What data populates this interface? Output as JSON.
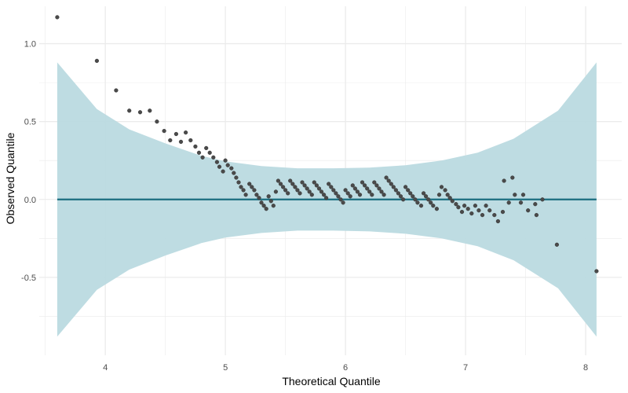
{
  "chart_data": {
    "type": "scatter",
    "title": "",
    "xlabel": "Theoretical Quantile",
    "ylabel": "Observed Quantile",
    "xlim": [
      3.45,
      8.3
    ],
    "ylim": [
      -1.0,
      1.24
    ],
    "x_ticks": [
      4,
      5,
      6,
      7,
      8
    ],
    "x_tick_labels": [
      "4",
      "5",
      "6",
      "7",
      "8"
    ],
    "y_ticks": [
      -0.5,
      0.0,
      0.5,
      1.0
    ],
    "y_tick_labels": [
      "-0.5",
      "0.0",
      "0.5",
      "1.0"
    ],
    "grid": true,
    "colors": {
      "points": "#4a4a4a",
      "reference_line": "#1b6e80",
      "band": "#b8d9df",
      "grid": "#ebebeb"
    },
    "reference_line": {
      "x": [
        3.6,
        8.09
      ],
      "y": [
        0.0,
        0.0
      ]
    },
    "confidence_band": {
      "x": [
        3.6,
        3.93,
        4.2,
        4.5,
        4.8,
        5.0,
        5.3,
        5.6,
        5.9,
        6.2,
        6.5,
        6.8,
        7.1,
        7.4,
        7.77,
        8.09
      ],
      "upper": [
        0.88,
        0.58,
        0.45,
        0.36,
        0.28,
        0.245,
        0.215,
        0.2,
        0.2,
        0.205,
        0.22,
        0.25,
        0.3,
        0.39,
        0.57,
        0.88
      ],
      "lower": [
        -0.88,
        -0.58,
        -0.45,
        -0.36,
        -0.28,
        -0.245,
        -0.215,
        -0.2,
        -0.2,
        -0.205,
        -0.22,
        -0.25,
        -0.3,
        -0.39,
        -0.57,
        -0.88
      ]
    },
    "points": [
      {
        "x": 3.6,
        "y": 1.17
      },
      {
        "x": 3.93,
        "y": 0.89
      },
      {
        "x": 4.09,
        "y": 0.7
      },
      {
        "x": 4.2,
        "y": 0.57
      },
      {
        "x": 4.29,
        "y": 0.56
      },
      {
        "x": 4.37,
        "y": 0.57
      },
      {
        "x": 4.43,
        "y": 0.5
      },
      {
        "x": 4.49,
        "y": 0.44
      },
      {
        "x": 4.54,
        "y": 0.38
      },
      {
        "x": 4.59,
        "y": 0.42
      },
      {
        "x": 4.63,
        "y": 0.37
      },
      {
        "x": 4.67,
        "y": 0.43
      },
      {
        "x": 4.71,
        "y": 0.38
      },
      {
        "x": 4.75,
        "y": 0.34
      },
      {
        "x": 4.78,
        "y": 0.3
      },
      {
        "x": 4.81,
        "y": 0.27
      },
      {
        "x": 4.84,
        "y": 0.33
      },
      {
        "x": 4.87,
        "y": 0.3
      },
      {
        "x": 4.9,
        "y": 0.27
      },
      {
        "x": 4.93,
        "y": 0.24
      },
      {
        "x": 4.95,
        "y": 0.21
      },
      {
        "x": 4.98,
        "y": 0.18
      },
      {
        "x": 5.0,
        "y": 0.25
      },
      {
        "x": 5.02,
        "y": 0.22
      },
      {
        "x": 5.05,
        "y": 0.2
      },
      {
        "x": 5.07,
        "y": 0.17
      },
      {
        "x": 5.09,
        "y": 0.14
      },
      {
        "x": 5.11,
        "y": 0.11
      },
      {
        "x": 5.13,
        "y": 0.08
      },
      {
        "x": 5.15,
        "y": 0.06
      },
      {
        "x": 5.17,
        "y": 0.03
      },
      {
        "x": 5.2,
        "y": 0.1
      },
      {
        "x": 5.22,
        "y": 0.08
      },
      {
        "x": 5.24,
        "y": 0.06
      },
      {
        "x": 5.26,
        "y": 0.03
      },
      {
        "x": 5.28,
        "y": 0.01
      },
      {
        "x": 5.3,
        "y": -0.02
      },
      {
        "x": 5.32,
        "y": -0.04
      },
      {
        "x": 5.34,
        "y": -0.06
      },
      {
        "x": 5.36,
        "y": 0.02
      },
      {
        "x": 5.38,
        "y": -0.01
      },
      {
        "x": 5.4,
        "y": -0.04
      },
      {
        "x": 5.42,
        "y": 0.05
      },
      {
        "x": 5.44,
        "y": 0.12
      },
      {
        "x": 5.46,
        "y": 0.1
      },
      {
        "x": 5.48,
        "y": 0.08
      },
      {
        "x": 5.5,
        "y": 0.06
      },
      {
        "x": 5.52,
        "y": 0.04
      },
      {
        "x": 5.54,
        "y": 0.12
      },
      {
        "x": 5.56,
        "y": 0.1
      },
      {
        "x": 5.58,
        "y": 0.08
      },
      {
        "x": 5.6,
        "y": 0.06
      },
      {
        "x": 5.62,
        "y": 0.04
      },
      {
        "x": 5.64,
        "y": 0.11
      },
      {
        "x": 5.66,
        "y": 0.09
      },
      {
        "x": 5.68,
        "y": 0.07
      },
      {
        "x": 5.7,
        "y": 0.05
      },
      {
        "x": 5.72,
        "y": 0.03
      },
      {
        "x": 5.74,
        "y": 0.11
      },
      {
        "x": 5.76,
        "y": 0.09
      },
      {
        "x": 5.78,
        "y": 0.07
      },
      {
        "x": 5.8,
        "y": 0.05
      },
      {
        "x": 5.82,
        "y": 0.03
      },
      {
        "x": 5.84,
        "y": 0.01
      },
      {
        "x": 5.86,
        "y": 0.1
      },
      {
        "x": 5.88,
        "y": 0.08
      },
      {
        "x": 5.9,
        "y": 0.06
      },
      {
        "x": 5.92,
        "y": 0.04
      },
      {
        "x": 5.94,
        "y": 0.02
      },
      {
        "x": 5.96,
        "y": 0.0
      },
      {
        "x": 5.98,
        "y": -0.02
      },
      {
        "x": 6.0,
        "y": 0.06
      },
      {
        "x": 6.02,
        "y": 0.04
      },
      {
        "x": 6.04,
        "y": 0.02
      },
      {
        "x": 6.06,
        "y": 0.09
      },
      {
        "x": 6.08,
        "y": 0.07
      },
      {
        "x": 6.1,
        "y": 0.05
      },
      {
        "x": 6.12,
        "y": 0.03
      },
      {
        "x": 6.14,
        "y": 0.11
      },
      {
        "x": 6.16,
        "y": 0.09
      },
      {
        "x": 6.18,
        "y": 0.07
      },
      {
        "x": 6.2,
        "y": 0.05
      },
      {
        "x": 6.22,
        "y": 0.03
      },
      {
        "x": 6.24,
        "y": 0.11
      },
      {
        "x": 6.26,
        "y": 0.09
      },
      {
        "x": 6.28,
        "y": 0.07
      },
      {
        "x": 6.3,
        "y": 0.05
      },
      {
        "x": 6.32,
        "y": 0.03
      },
      {
        "x": 6.34,
        "y": 0.14
      },
      {
        "x": 6.36,
        "y": 0.12
      },
      {
        "x": 6.38,
        "y": 0.1
      },
      {
        "x": 6.4,
        "y": 0.08
      },
      {
        "x": 6.42,
        "y": 0.06
      },
      {
        "x": 6.44,
        "y": 0.04
      },
      {
        "x": 6.46,
        "y": 0.02
      },
      {
        "x": 6.48,
        "y": 0.0
      },
      {
        "x": 6.5,
        "y": 0.08
      },
      {
        "x": 6.52,
        "y": 0.06
      },
      {
        "x": 6.54,
        "y": 0.04
      },
      {
        "x": 6.56,
        "y": 0.02
      },
      {
        "x": 6.58,
        "y": 0.0
      },
      {
        "x": 6.6,
        "y": -0.02
      },
      {
        "x": 6.63,
        "y": -0.04
      },
      {
        "x": 6.65,
        "y": 0.04
      },
      {
        "x": 6.67,
        "y": 0.02
      },
      {
        "x": 6.69,
        "y": 0.0
      },
      {
        "x": 6.71,
        "y": -0.02
      },
      {
        "x": 6.73,
        "y": -0.04
      },
      {
        "x": 6.76,
        "y": -0.06
      },
      {
        "x": 6.78,
        "y": 0.03
      },
      {
        "x": 6.8,
        "y": 0.08
      },
      {
        "x": 6.83,
        "y": 0.06
      },
      {
        "x": 6.85,
        "y": 0.03
      },
      {
        "x": 6.87,
        "y": 0.01
      },
      {
        "x": 6.89,
        "y": -0.01
      },
      {
        "x": 6.92,
        "y": -0.03
      },
      {
        "x": 6.94,
        "y": -0.05
      },
      {
        "x": 6.97,
        "y": -0.08
      },
      {
        "x": 6.99,
        "y": -0.04
      },
      {
        "x": 7.02,
        "y": -0.06
      },
      {
        "x": 7.05,
        "y": -0.09
      },
      {
        "x": 7.08,
        "y": -0.04
      },
      {
        "x": 7.11,
        "y": -0.07
      },
      {
        "x": 7.14,
        "y": -0.1
      },
      {
        "x": 7.17,
        "y": -0.04
      },
      {
        "x": 7.2,
        "y": -0.07
      },
      {
        "x": 7.24,
        "y": -0.1
      },
      {
        "x": 7.27,
        "y": -0.14
      },
      {
        "x": 7.31,
        "y": -0.08
      },
      {
        "x": 7.36,
        "y": -0.02
      },
      {
        "x": 7.41,
        "y": 0.03
      },
      {
        "x": 7.46,
        "y": -0.02
      },
      {
        "x": 7.52,
        "y": -0.07
      },
      {
        "x": 7.58,
        "y": -0.03
      },
      {
        "x": 7.64,
        "y": 0.0
      },
      {
        "x": 7.32,
        "y": 0.12
      },
      {
        "x": 7.39,
        "y": 0.14
      },
      {
        "x": 7.48,
        "y": 0.03
      },
      {
        "x": 7.59,
        "y": -0.1
      },
      {
        "x": 7.76,
        "y": -0.29
      },
      {
        "x": 8.09,
        "y": -0.46
      }
    ]
  }
}
